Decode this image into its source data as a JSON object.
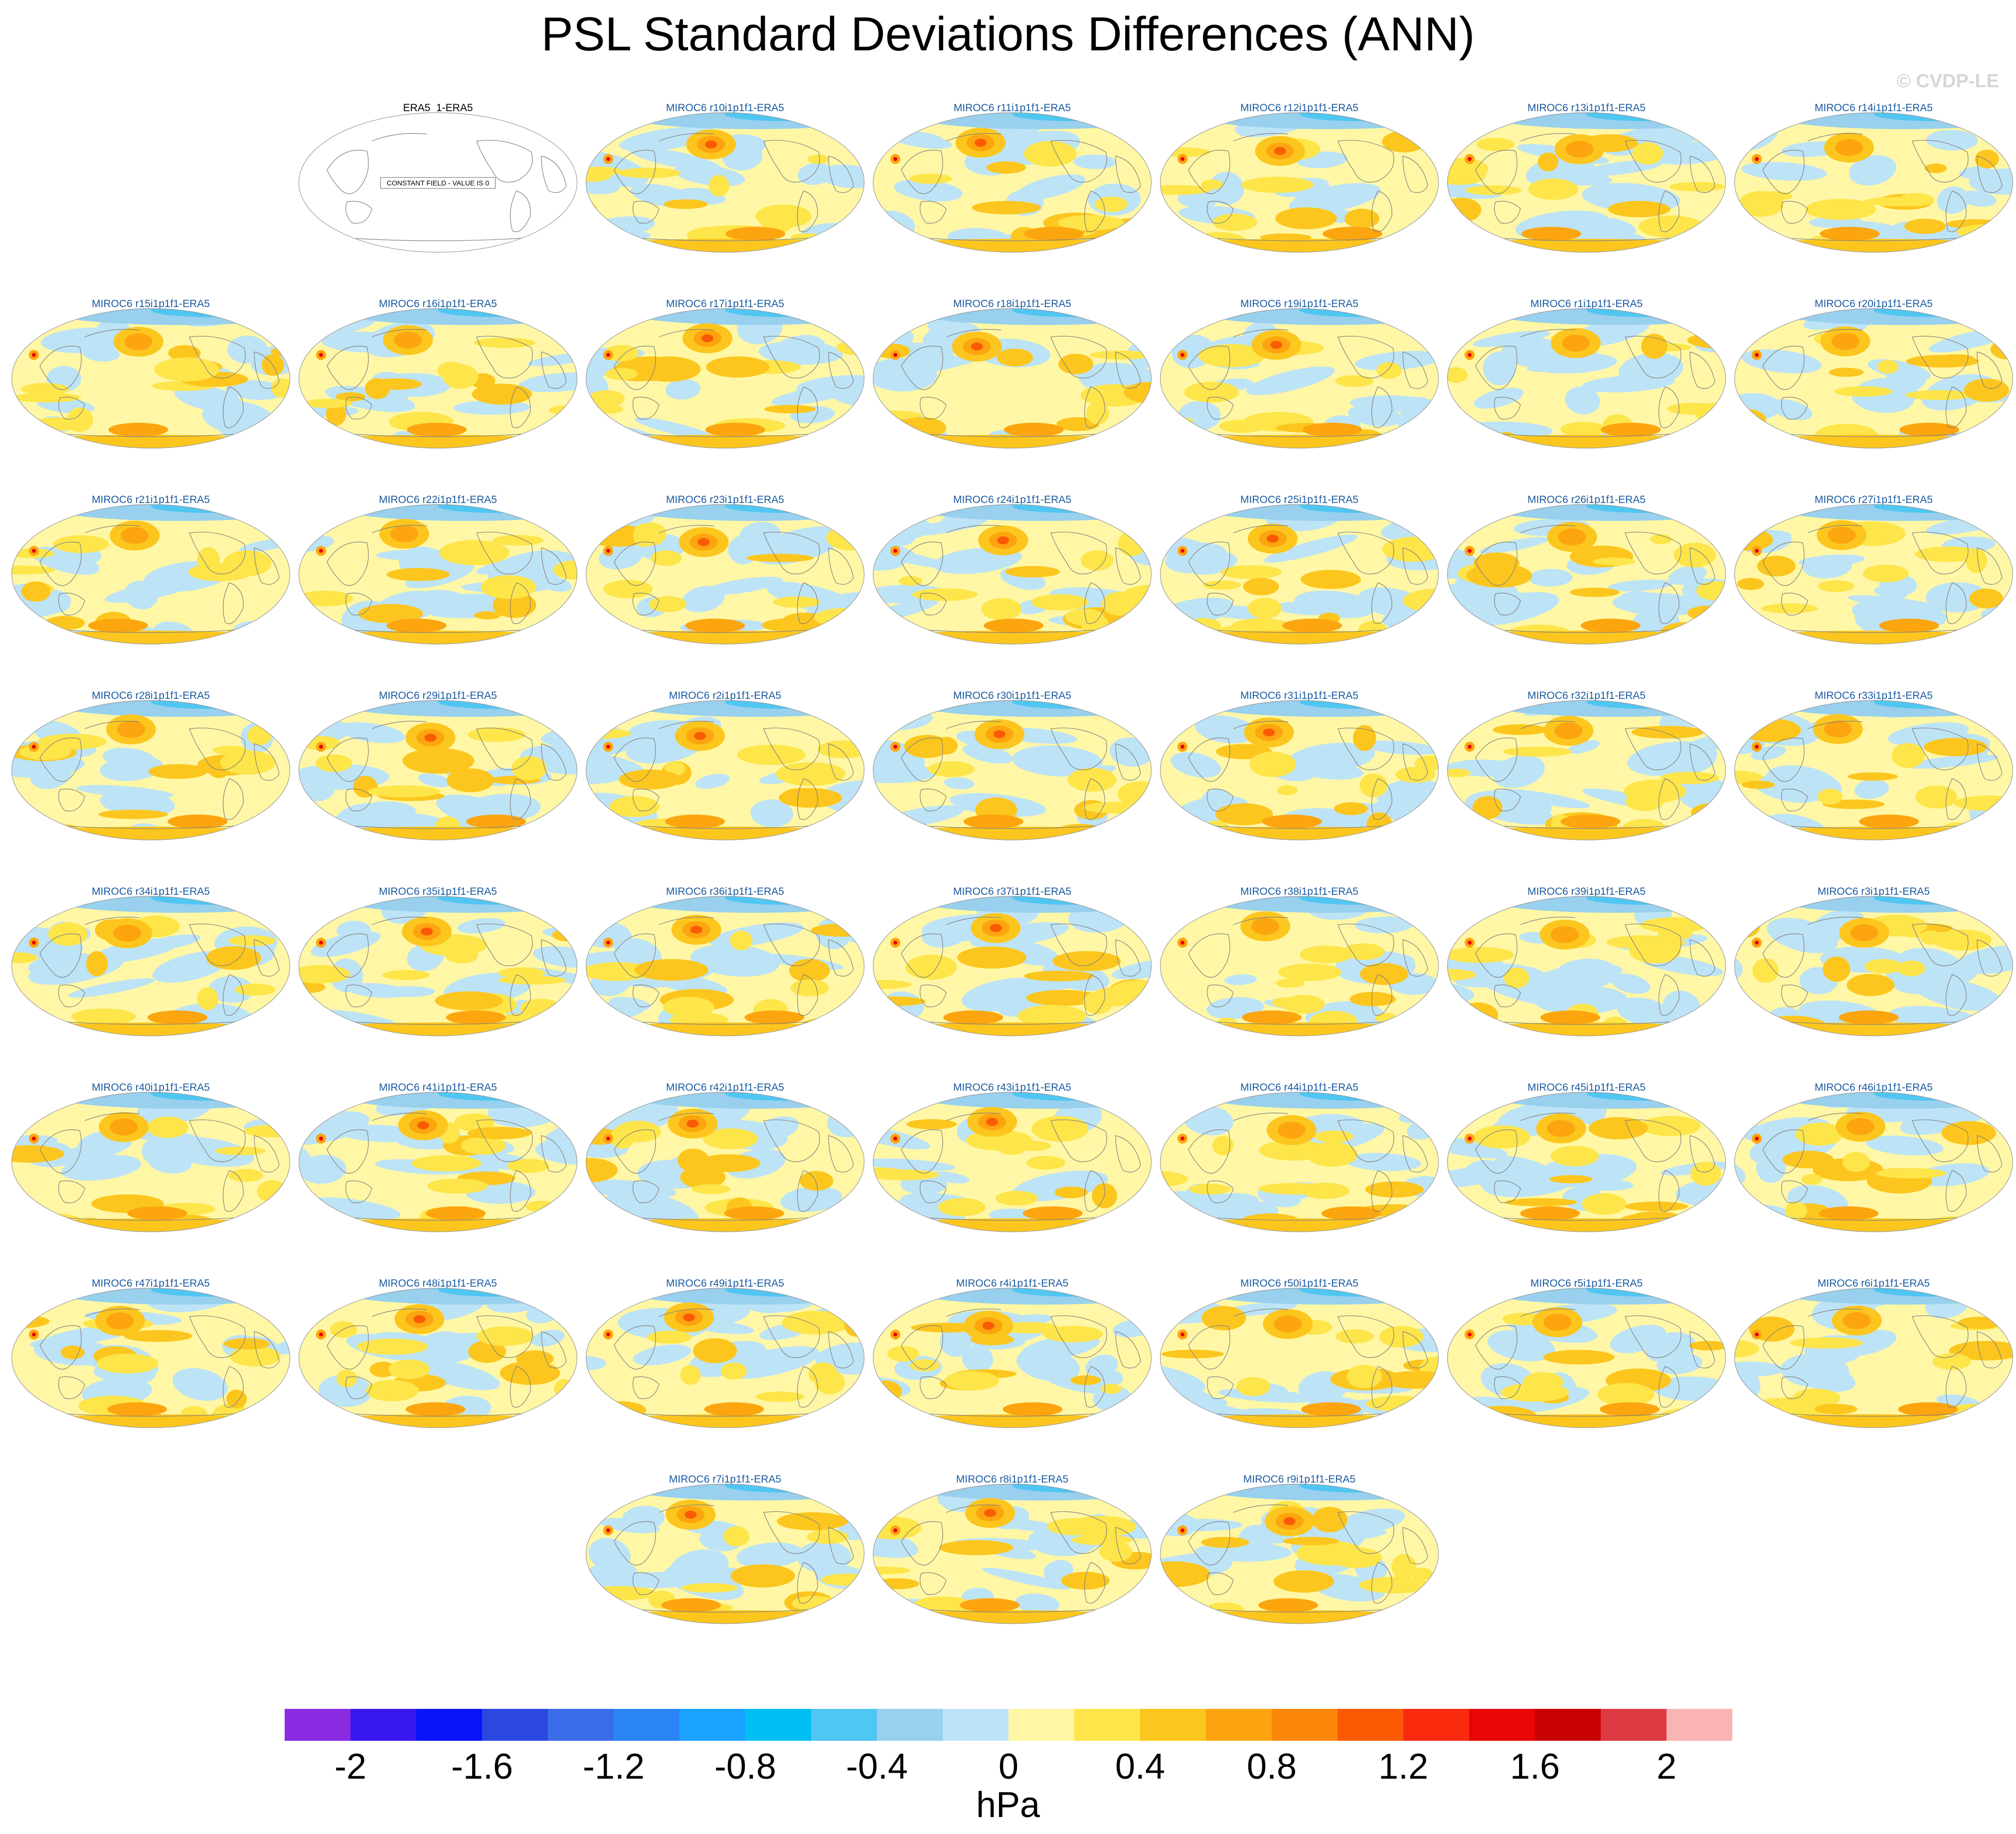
{
  "title": "PSL Standard Deviations Differences (ANN)",
  "watermark": "© CVDP-LE",
  "chart_data": {
    "type": "heatmap",
    "title": "PSL Standard Deviations Differences (ANN)",
    "projection": "Robinson, centered on the Pacific",
    "units": "hPa",
    "colorbar": {
      "levels": [
        -2.2,
        -2.0,
        -1.8,
        -1.6,
        -1.4,
        -1.2,
        -1.0,
        -0.8,
        -0.6,
        -0.4,
        -0.2,
        0,
        0.2,
        0.4,
        0.6,
        0.8,
        1.0,
        1.2,
        1.4,
        1.6,
        1.8,
        2.0,
        2.2
      ],
      "tick_labels": [
        "-2",
        "-1.6",
        "-1.2",
        "-0.8",
        "-0.4",
        "0",
        "0.4",
        "0.8",
        "1.2",
        "1.6",
        "2"
      ],
      "colors": [
        "#8a2be2",
        "#3818f0",
        "#0a14fa",
        "#2a48e0",
        "#3a6ce8",
        "#2b84f5",
        "#1aa2ff",
        "#00bff5",
        "#50c6f2",
        "#98d0ee",
        "#bde3f6",
        "#fff7a5",
        "#fde54a",
        "#fcc61e",
        "#fca50f",
        "#fc8809",
        "#fb5a04",
        "#f92a0e",
        "#e80505",
        "#c80000",
        "#dd3b44",
        "#fbb4b4"
      ]
    },
    "reference_panel": {
      "label": "ERA5_1-ERA5",
      "note": "CONSTANT FIELD - VALUE IS 0"
    },
    "panels": [
      "MIROC6 r10i1p1f1-ERA5",
      "MIROC6 r11i1p1f1-ERA5",
      "MIROC6 r12i1p1f1-ERA5",
      "MIROC6 r13i1p1f1-ERA5",
      "MIROC6 r14i1p1f1-ERA5",
      "MIROC6 r15i1p1f1-ERA5",
      "MIROC6 r16i1p1f1-ERA5",
      "MIROC6 r17i1p1f1-ERA5",
      "MIROC6 r18i1p1f1-ERA5",
      "MIROC6 r19i1p1f1-ERA5",
      "MIROC6 r1i1p1f1-ERA5",
      "MIROC6 r20i1p1f1-ERA5",
      "MIROC6 r21i1p1f1-ERA5",
      "MIROC6 r22i1p1f1-ERA5",
      "MIROC6 r23i1p1f1-ERA5",
      "MIROC6 r24i1p1f1-ERA5",
      "MIROC6 r25i1p1f1-ERA5",
      "MIROC6 r26i1p1f1-ERA5",
      "MIROC6 r27i1p1f1-ERA5",
      "MIROC6 r28i1p1f1-ERA5",
      "MIROC6 r29i1p1f1-ERA5",
      "MIROC6 r2i1p1f1-ERA5",
      "MIROC6 r30i1p1f1-ERA5",
      "MIROC6 r31i1p1f1-ERA5",
      "MIROC6 r32i1p1f1-ERA5",
      "MIROC6 r33i1p1f1-ERA5",
      "MIROC6 r34i1p1f1-ERA5",
      "MIROC6 r35i1p1f1-ERA5",
      "MIROC6 r36i1p1f1-ERA5",
      "MIROC6 r37i1p1f1-ERA5",
      "MIROC6 r38i1p1f1-ERA5",
      "MIROC6 r39i1p1f1-ERA5",
      "MIROC6 r3i1p1f1-ERA5",
      "MIROC6 r40i1p1f1-ERA5",
      "MIROC6 r41i1p1f1-ERA5",
      "MIROC6 r42i1p1f1-ERA5",
      "MIROC6 r43i1p1f1-ERA5",
      "MIROC6 r44i1p1f1-ERA5",
      "MIROC6 r45i1p1f1-ERA5",
      "MIROC6 r46i1p1f1-ERA5",
      "MIROC6 r47i1p1f1-ERA5",
      "MIROC6 r48i1p1f1-ERA5",
      "MIROC6 r49i1p1f1-ERA5",
      "MIROC6 r4i1p1f1-ERA5",
      "MIROC6 r50i1p1f1-ERA5",
      "MIROC6 r5i1p1f1-ERA5",
      "MIROC6 r6i1p1f1-ERA5",
      "MIROC6 r7i1p1f1-ERA5",
      "MIROC6 r8i1p1f1-ERA5",
      "MIROC6 r9i1p1f1-ERA5"
    ]
  }
}
